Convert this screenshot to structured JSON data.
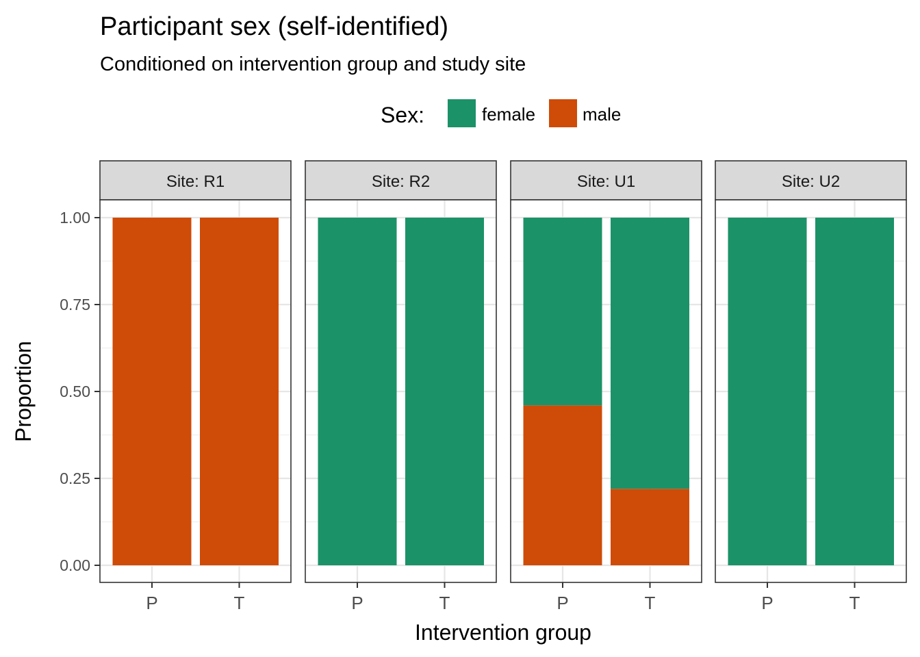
{
  "chart_data": {
    "type": "bar",
    "stacked": true,
    "title": "Participant sex (self-identified)",
    "subtitle": "Conditioned on intervention group and study site",
    "xlabel": "Intervention group",
    "ylabel": "Proportion",
    "ylim": [
      0,
      1
    ],
    "y_ticks": [
      "0.00",
      "0.25",
      "0.50",
      "0.75",
      "1.00"
    ],
    "grid": true,
    "legend": {
      "title": "Sex:",
      "position": "top",
      "entries": [
        {
          "name": "female",
          "color": "#1b9268"
        },
        {
          "name": "male",
          "color": "#cf4b08"
        }
      ]
    },
    "categories": [
      "P",
      "T"
    ],
    "facets": [
      {
        "label": "Site: R1",
        "series": [
          {
            "name": "male",
            "values": [
              1.0,
              1.0
            ]
          },
          {
            "name": "female",
            "values": [
              0.0,
              0.0
            ]
          }
        ]
      },
      {
        "label": "Site: R2",
        "series": [
          {
            "name": "male",
            "values": [
              0.0,
              0.0
            ]
          },
          {
            "name": "female",
            "values": [
              1.0,
              1.0
            ]
          }
        ]
      },
      {
        "label": "Site: U1",
        "series": [
          {
            "name": "male",
            "values": [
              0.46,
              0.22
            ]
          },
          {
            "name": "female",
            "values": [
              0.54,
              0.78
            ]
          }
        ]
      },
      {
        "label": "Site: U2",
        "series": [
          {
            "name": "male",
            "values": [
              0.0,
              0.0
            ]
          },
          {
            "name": "female",
            "values": [
              1.0,
              1.0
            ]
          }
        ]
      }
    ]
  }
}
